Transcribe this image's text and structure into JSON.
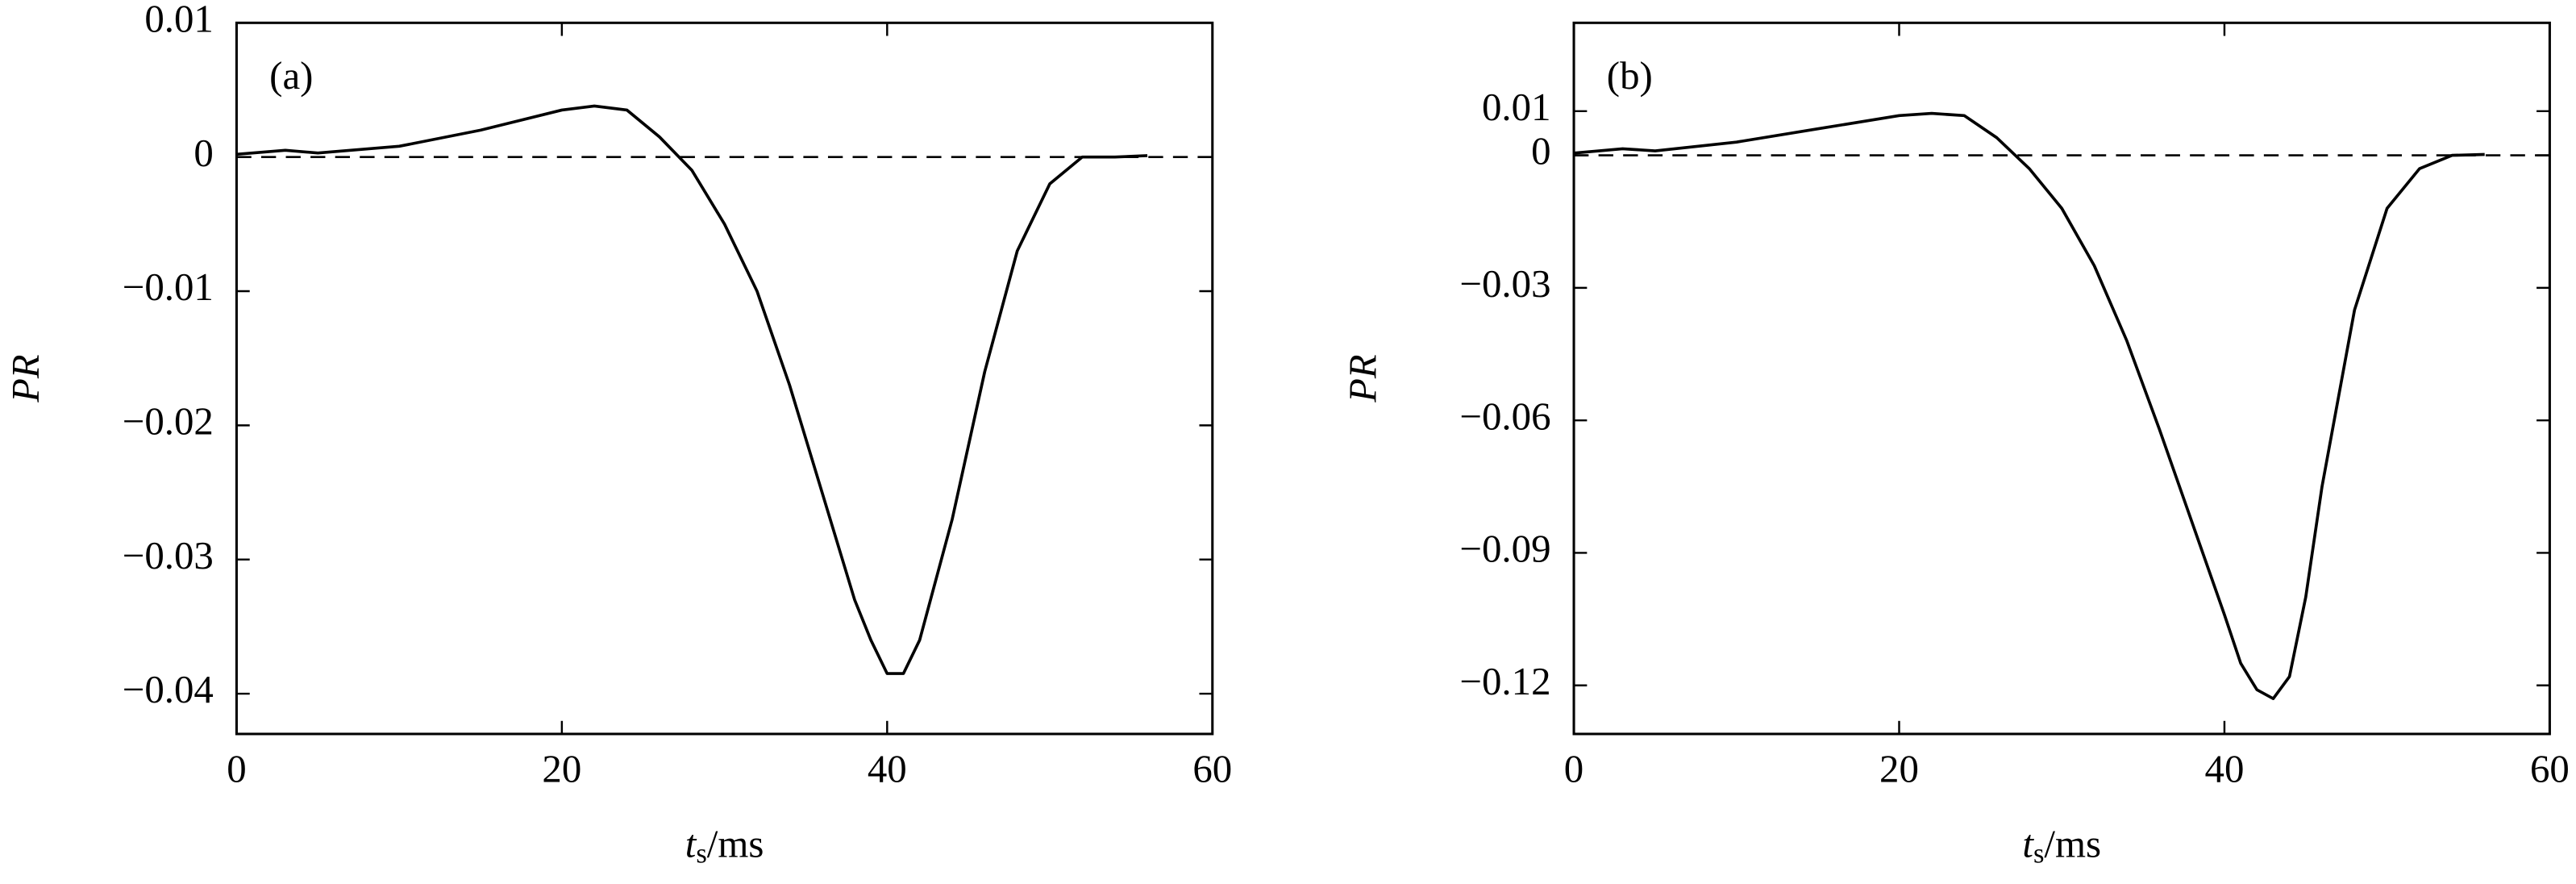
{
  "chart_data": [
    {
      "type": "line",
      "annotation": "(a)",
      "ylabel": "PR",
      "xlabel": {
        "main": "t",
        "sub": "s",
        "unit": "/ms"
      },
      "xlim": [
        0,
        60
      ],
      "xticks": [
        0,
        20,
        40,
        60
      ],
      "ylim": [
        -0.043,
        0.01
      ],
      "yticks": [
        0.01,
        0,
        {
          "value": -0.01,
          "label": "−0.01"
        },
        {
          "value": -0.02,
          "label": "−0.02"
        },
        {
          "value": -0.03,
          "label": "−0.03"
        },
        {
          "value": -0.04,
          "label": "−0.04"
        }
      ],
      "reference_line": 0,
      "series": [
        {
          "color": "#000000",
          "x": [
            0,
            3,
            5,
            10,
            15,
            20,
            22,
            24,
            26,
            28,
            30,
            32,
            34,
            36,
            38,
            39,
            40,
            41,
            42,
            44,
            46,
            48,
            50,
            52,
            54,
            56
          ],
          "values": [
            0.0002,
            0.0005,
            0.0003,
            0.0008,
            0.002,
            0.0035,
            0.0038,
            0.0035,
            0.0015,
            -0.001,
            -0.005,
            -0.01,
            -0.017,
            -0.025,
            -0.033,
            -0.036,
            -0.0385,
            -0.0385,
            -0.036,
            -0.027,
            -0.016,
            -0.007,
            -0.002,
            0,
            0,
            0.0001
          ]
        }
      ]
    },
    {
      "type": "line",
      "annotation": "(b)",
      "ylabel": "PR",
      "xlabel": {
        "main": "t",
        "sub": "s",
        "unit": "/ms"
      },
      "xlim": [
        0,
        60
      ],
      "xticks": [
        0,
        20,
        40,
        60
      ],
      "ylim": [
        -0.131,
        0.03
      ],
      "yticks": [
        0.01,
        0,
        {
          "value": -0.03,
          "label": "−0.03"
        },
        {
          "value": -0.06,
          "label": "−0.06"
        },
        {
          "value": -0.09,
          "label": "−0.09"
        },
        {
          "value": -0.12,
          "label": "−0.12"
        }
      ],
      "reference_line": 0,
      "series": [
        {
          "color": "#000000",
          "x": [
            0,
            3,
            5,
            10,
            15,
            20,
            22,
            24,
            26,
            28,
            30,
            32,
            34,
            36,
            38,
            40,
            41,
            42,
            43,
            44,
            45,
            46,
            48,
            50,
            52,
            54,
            56
          ],
          "values": [
            0.0005,
            0.0015,
            0.001,
            0.003,
            0.006,
            0.009,
            0.0095,
            0.009,
            0.004,
            -0.003,
            -0.012,
            -0.025,
            -0.042,
            -0.062,
            -0.083,
            -0.104,
            -0.115,
            -0.121,
            -0.123,
            -0.118,
            -0.1,
            -0.075,
            -0.035,
            -0.012,
            -0.003,
            0,
            0.0002
          ]
        }
      ]
    }
  ]
}
